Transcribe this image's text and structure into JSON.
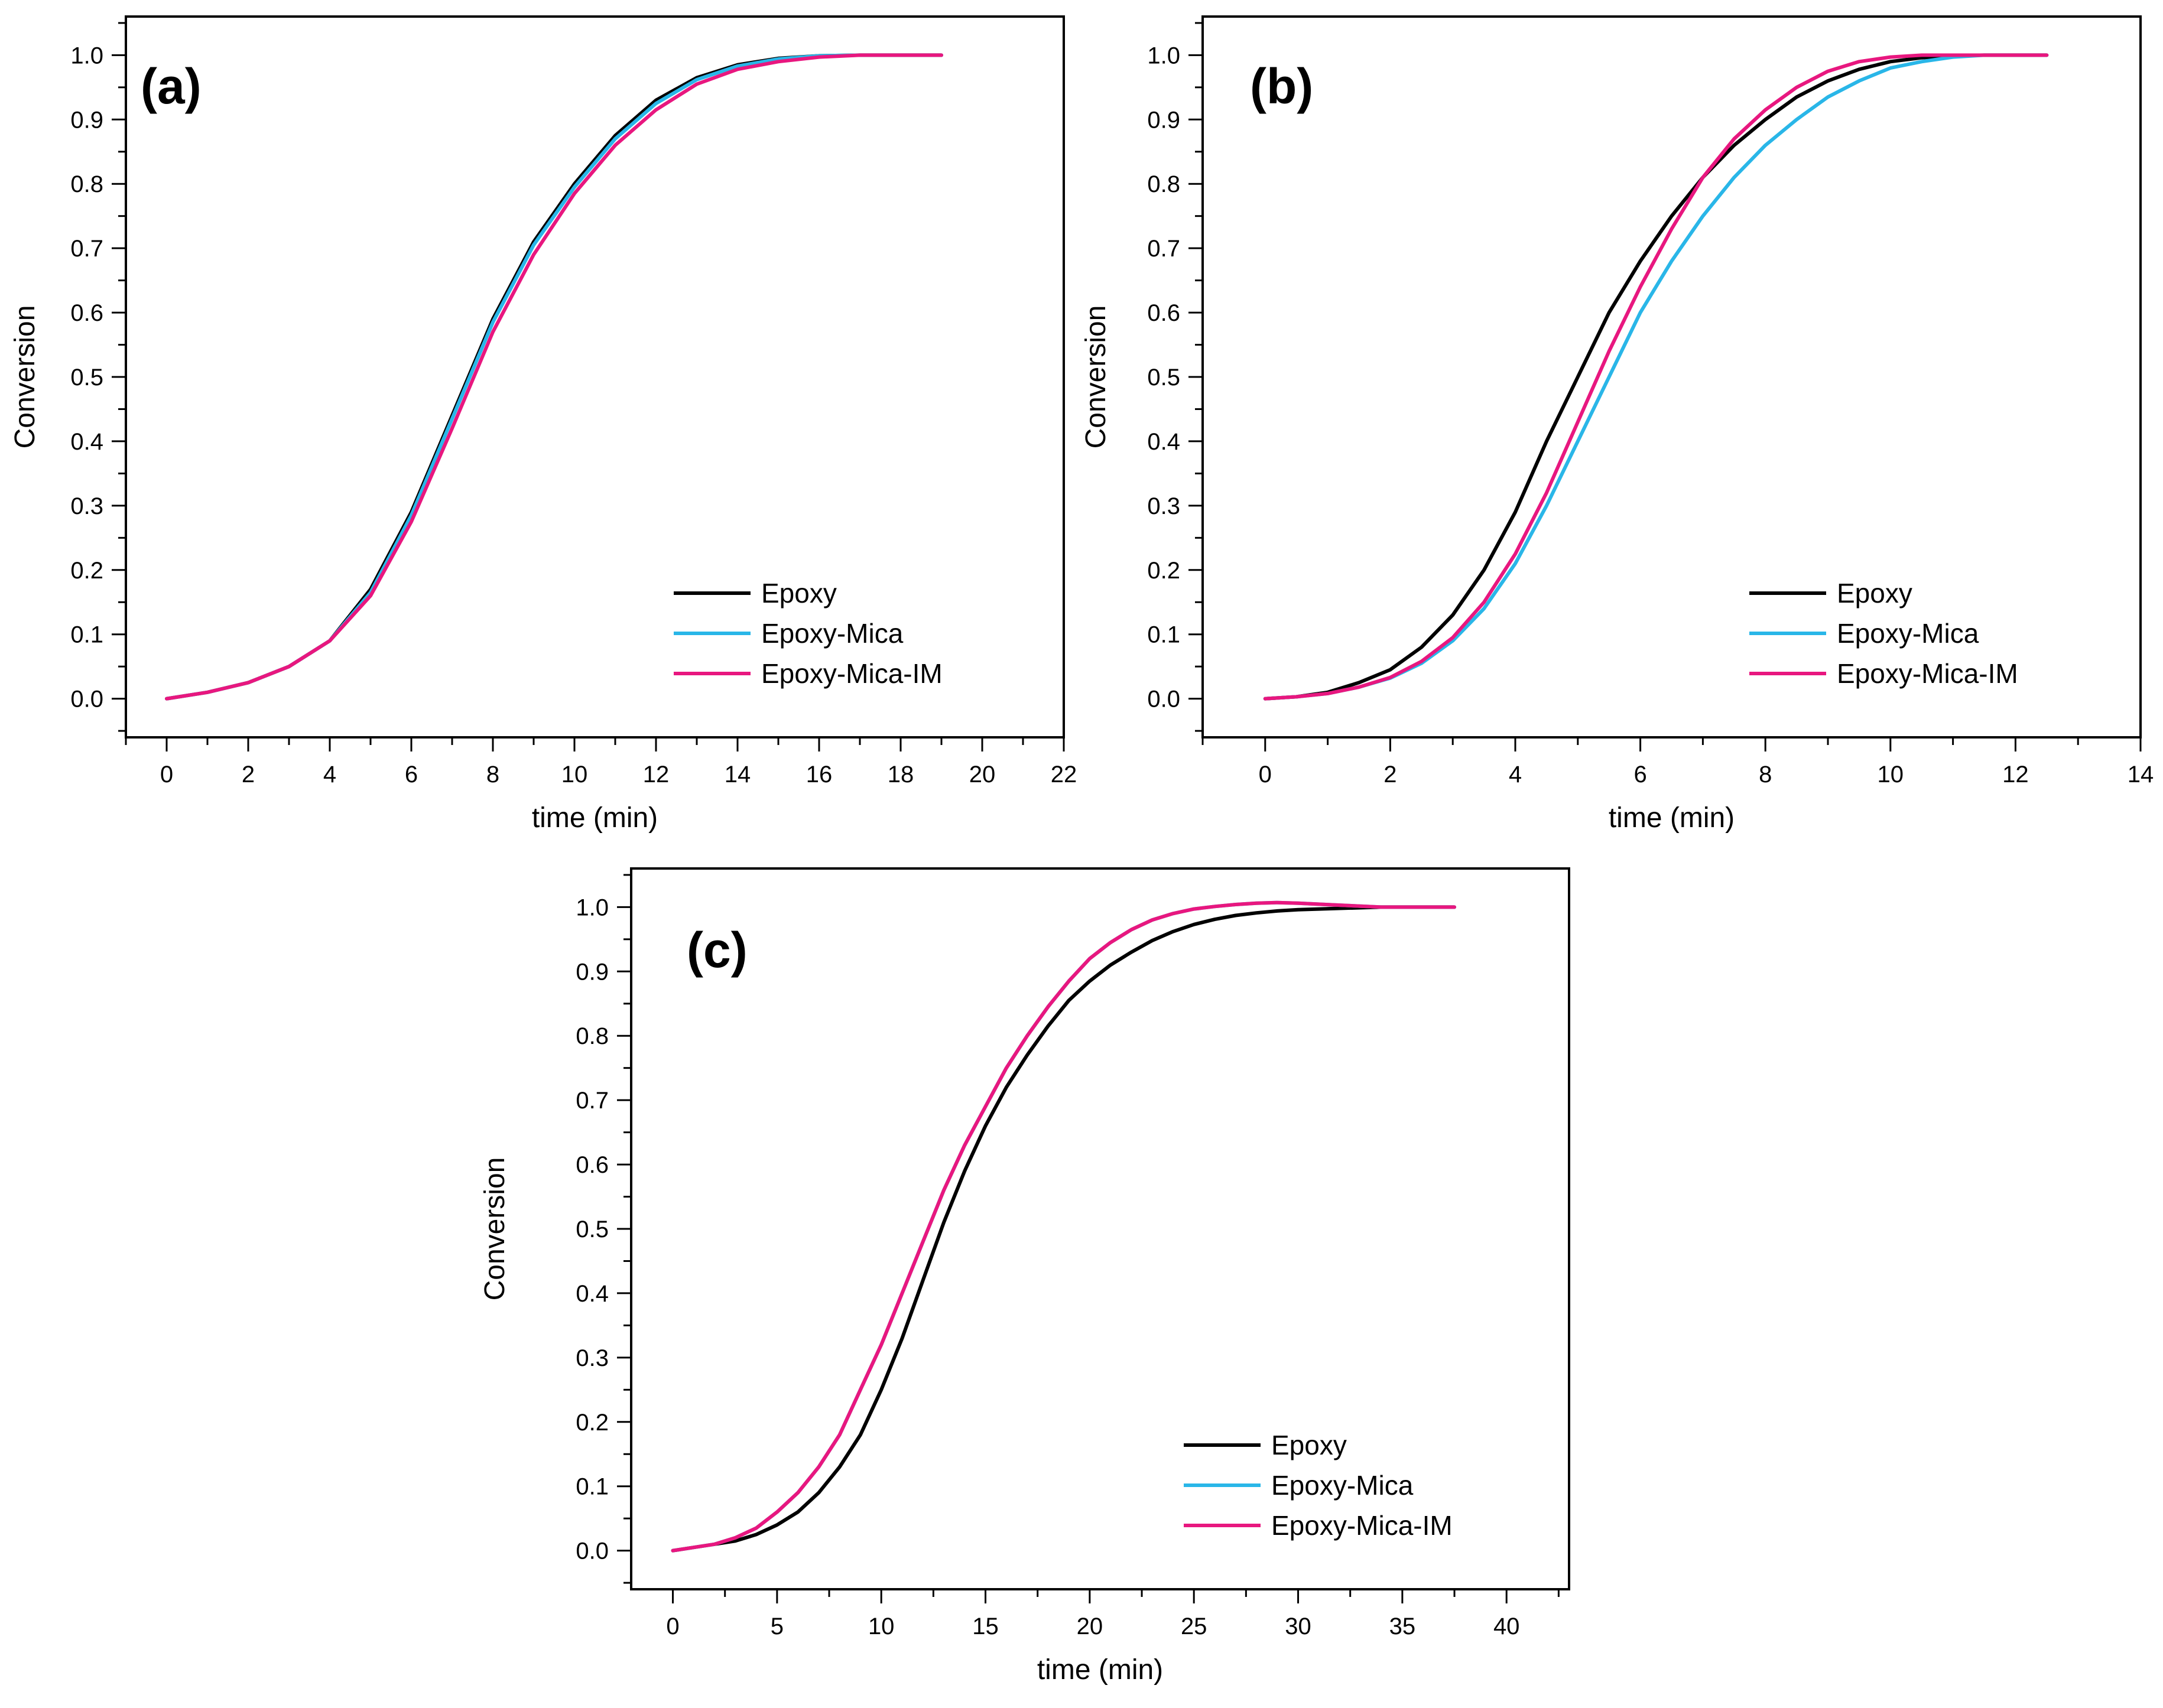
{
  "figure": {
    "colors": {
      "epoxy": "#000000",
      "epoxy_mica": "#29b6e8",
      "epoxy_mica_im": "#e8177f"
    }
  },
  "chart_data": [
    {
      "type": "line",
      "panel_label": "(a)",
      "xlabel": "time (min)",
      "ylabel": "Conversion",
      "xlim": [
        -1,
        22
      ],
      "ylim": [
        -0.06,
        1.06
      ],
      "xticks": [
        0,
        2,
        4,
        6,
        8,
        10,
        12,
        14,
        16,
        18,
        20,
        22
      ],
      "yticks": [
        0.0,
        0.1,
        0.2,
        0.3,
        0.4,
        0.5,
        0.6,
        0.7,
        0.8,
        0.9,
        1.0
      ],
      "legend_position": "lower-right",
      "series": [
        {
          "name": "Epoxy",
          "color": "#000000",
          "x": [
            0,
            1,
            2,
            3,
            4,
            5,
            6,
            7,
            8,
            9,
            10,
            11,
            12,
            13,
            14,
            15,
            16,
            17,
            18,
            19
          ],
          "y": [
            0.0,
            0.01,
            0.025,
            0.05,
            0.09,
            0.17,
            0.29,
            0.44,
            0.59,
            0.71,
            0.8,
            0.875,
            0.93,
            0.965,
            0.985,
            0.995,
            0.999,
            1.0,
            1.0,
            1.0
          ]
        },
        {
          "name": "Epoxy-Mica",
          "color": "#29b6e8",
          "x": [
            0,
            1,
            2,
            3,
            4,
            5,
            6,
            7,
            8,
            9,
            10,
            11,
            12,
            13,
            14,
            15,
            16,
            17,
            18,
            19
          ],
          "y": [
            0.0,
            0.01,
            0.025,
            0.05,
            0.09,
            0.165,
            0.285,
            0.435,
            0.585,
            0.705,
            0.795,
            0.87,
            0.925,
            0.962,
            0.983,
            0.994,
            0.999,
            1.0,
            1.0,
            1.0
          ]
        },
        {
          "name": "Epoxy-Mica-IM",
          "color": "#e8177f",
          "x": [
            0,
            1,
            2,
            3,
            4,
            5,
            6,
            7,
            8,
            9,
            10,
            11,
            12,
            13,
            14,
            15,
            16,
            17,
            18,
            19
          ],
          "y": [
            0.0,
            0.01,
            0.025,
            0.05,
            0.09,
            0.16,
            0.275,
            0.42,
            0.57,
            0.69,
            0.785,
            0.86,
            0.915,
            0.955,
            0.978,
            0.99,
            0.997,
            1.0,
            1.0,
            1.0
          ]
        }
      ]
    },
    {
      "type": "line",
      "panel_label": "(b)",
      "xlabel": "time (min)",
      "ylabel": "Conversion",
      "xlim": [
        -1,
        14
      ],
      "ylim": [
        -0.06,
        1.06
      ],
      "xticks": [
        0,
        2,
        4,
        6,
        8,
        10,
        12,
        14
      ],
      "yticks": [
        0.0,
        0.1,
        0.2,
        0.3,
        0.4,
        0.5,
        0.6,
        0.7,
        0.8,
        0.9,
        1.0
      ],
      "legend_position": "lower-right",
      "series": [
        {
          "name": "Epoxy",
          "color": "#000000",
          "x": [
            0,
            0.5,
            1,
            1.5,
            2,
            2.5,
            3,
            3.5,
            4,
            4.5,
            5,
            5.5,
            6,
            6.5,
            7,
            7.5,
            8,
            8.5,
            9,
            9.5,
            10,
            10.5,
            11,
            11.5,
            12,
            12.5
          ],
          "y": [
            0.0,
            0.003,
            0.01,
            0.025,
            0.045,
            0.08,
            0.13,
            0.2,
            0.29,
            0.4,
            0.5,
            0.6,
            0.68,
            0.75,
            0.81,
            0.86,
            0.9,
            0.935,
            0.96,
            0.978,
            0.99,
            0.996,
            0.999,
            1.0,
            1.0,
            1.0
          ]
        },
        {
          "name": "Epoxy-Mica",
          "color": "#29b6e8",
          "x": [
            0,
            0.5,
            1,
            1.5,
            2,
            2.5,
            3,
            3.5,
            4,
            4.5,
            5,
            5.5,
            6,
            6.5,
            7,
            7.5,
            8,
            8.5,
            9,
            9.5,
            10,
            10.5,
            11,
            11.5,
            12,
            12.5
          ],
          "y": [
            0.0,
            0.003,
            0.008,
            0.018,
            0.032,
            0.055,
            0.09,
            0.14,
            0.21,
            0.3,
            0.4,
            0.5,
            0.6,
            0.68,
            0.75,
            0.81,
            0.86,
            0.9,
            0.935,
            0.96,
            0.98,
            0.99,
            0.997,
            1.0,
            1.0,
            1.0
          ]
        },
        {
          "name": "Epoxy-Mica-IM",
          "color": "#e8177f",
          "x": [
            0,
            0.5,
            1,
            1.5,
            2,
            2.5,
            3,
            3.5,
            4,
            4.5,
            5,
            5.5,
            6,
            6.5,
            7,
            7.5,
            8,
            8.5,
            9,
            9.5,
            10,
            10.5,
            11,
            11.5,
            12,
            12.5
          ],
          "y": [
            0.0,
            0.003,
            0.008,
            0.018,
            0.033,
            0.058,
            0.095,
            0.15,
            0.225,
            0.32,
            0.43,
            0.54,
            0.64,
            0.73,
            0.81,
            0.87,
            0.915,
            0.95,
            0.975,
            0.99,
            0.997,
            1.0,
            1.0,
            1.0,
            1.0,
            1.0
          ]
        }
      ]
    },
    {
      "type": "line",
      "panel_label": "(c)",
      "xlabel": "time (min)",
      "ylabel": "Conversion",
      "xlim": [
        -2,
        43
      ],
      "ylim": [
        -0.06,
        1.06
      ],
      "xticks": [
        0,
        5,
        10,
        15,
        20,
        25,
        30,
        35,
        40
      ],
      "yticks": [
        0.0,
        0.1,
        0.2,
        0.3,
        0.4,
        0.5,
        0.6,
        0.7,
        0.8,
        0.9,
        1.0
      ],
      "legend_position": "lower-right",
      "series": [
        {
          "name": "Epoxy",
          "color": "#000000",
          "x": [
            0,
            1,
            2,
            3,
            4,
            5,
            6,
            7,
            8,
            9,
            10,
            11,
            12,
            13,
            14,
            15,
            16,
            17,
            18,
            19,
            20,
            21,
            22,
            23,
            24,
            25,
            26,
            27,
            28,
            29,
            30,
            32,
            34,
            36,
            37.5
          ],
          "y": [
            0.0,
            0.005,
            0.01,
            0.015,
            0.025,
            0.04,
            0.06,
            0.09,
            0.13,
            0.18,
            0.25,
            0.33,
            0.42,
            0.51,
            0.59,
            0.66,
            0.72,
            0.77,
            0.815,
            0.855,
            0.885,
            0.91,
            0.93,
            0.948,
            0.962,
            0.973,
            0.981,
            0.987,
            0.991,
            0.994,
            0.996,
            0.998,
            1.0,
            1.0,
            1.0
          ]
        },
        {
          "name": "Epoxy-Mica",
          "color": "#29b6e8",
          "x": [
            0,
            1,
            2,
            3,
            4,
            5,
            6,
            7,
            8,
            9,
            10,
            11,
            12,
            13,
            14,
            15,
            16,
            17,
            18,
            19,
            20,
            21,
            22,
            23,
            24,
            25,
            26,
            27,
            28,
            29,
            30,
            32,
            34,
            36,
            37.5
          ],
          "y": [
            0.0,
            0.005,
            0.01,
            0.02,
            0.035,
            0.06,
            0.09,
            0.13,
            0.18,
            0.25,
            0.32,
            0.4,
            0.48,
            0.56,
            0.63,
            0.69,
            0.75,
            0.8,
            0.845,
            0.885,
            0.92,
            0.945,
            0.965,
            0.98,
            0.99,
            0.997,
            1.001,
            1.004,
            1.006,
            1.007,
            1.006,
            1.003,
            1.0,
            1.0,
            1.0
          ]
        },
        {
          "name": "Epoxy-Mica-IM",
          "color": "#e8177f",
          "x": [
            0,
            1,
            2,
            3,
            4,
            5,
            6,
            7,
            8,
            9,
            10,
            11,
            12,
            13,
            14,
            15,
            16,
            17,
            18,
            19,
            20,
            21,
            22,
            23,
            24,
            25,
            26,
            27,
            28,
            29,
            30,
            32,
            34,
            36,
            37.5
          ],
          "y": [
            0.0,
            0.005,
            0.01,
            0.02,
            0.035,
            0.06,
            0.09,
            0.13,
            0.18,
            0.25,
            0.32,
            0.4,
            0.48,
            0.56,
            0.63,
            0.69,
            0.75,
            0.8,
            0.845,
            0.885,
            0.92,
            0.945,
            0.965,
            0.98,
            0.99,
            0.997,
            1.001,
            1.004,
            1.006,
            1.007,
            1.006,
            1.003,
            1.0,
            1.0,
            1.0
          ]
        }
      ]
    }
  ]
}
